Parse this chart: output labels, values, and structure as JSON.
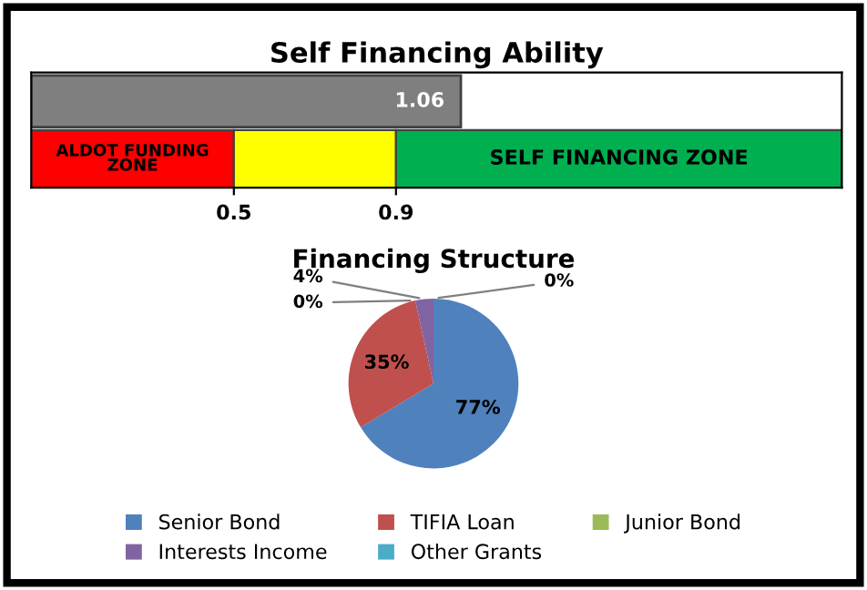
{
  "chart_data": [
    {
      "type": "bar",
      "title": "Self Financing Ability",
      "orientation": "horizontal",
      "categories": [
        null
      ],
      "values": [
        1.06
      ],
      "color": "#7f7f7f",
      "data_labels": true,
      "xlim": [
        0,
        2
      ],
      "xticks": [
        0.5,
        0.9
      ],
      "tick_labels": "x",
      "grid": false,
      "legend": false,
      "bands": [
        {
          "axis": "x",
          "from": 0,
          "to": 0.5,
          "label": "ALDOT FUNDING ZONE",
          "color": "#ff0000"
        },
        {
          "axis": "x",
          "from": 0.5,
          "to": 0.9,
          "label": null,
          "color": "#ffff00"
        },
        {
          "axis": "x",
          "from": 0.9,
          "to": 2,
          "label": "SELF FINANCING ZONE",
          "color": "#00b050"
        }
      ]
    },
    {
      "type": "pie",
      "title": "Financing Structure",
      "categories": [
        "Senior Bond",
        "TIFIA Loan",
        "Junior Bond",
        "Interests Income",
        "Other Grants"
      ],
      "values": [
        77,
        35,
        0,
        4,
        0
      ],
      "value_labels": [
        "77%",
        "35%",
        "0%",
        "4%",
        "0%"
      ],
      "colors": [
        "#4f81bd",
        "#c0504d",
        "#9bbb59",
        "#8064a2",
        "#4bacc6"
      ],
      "legend": "bottom"
    }
  ]
}
